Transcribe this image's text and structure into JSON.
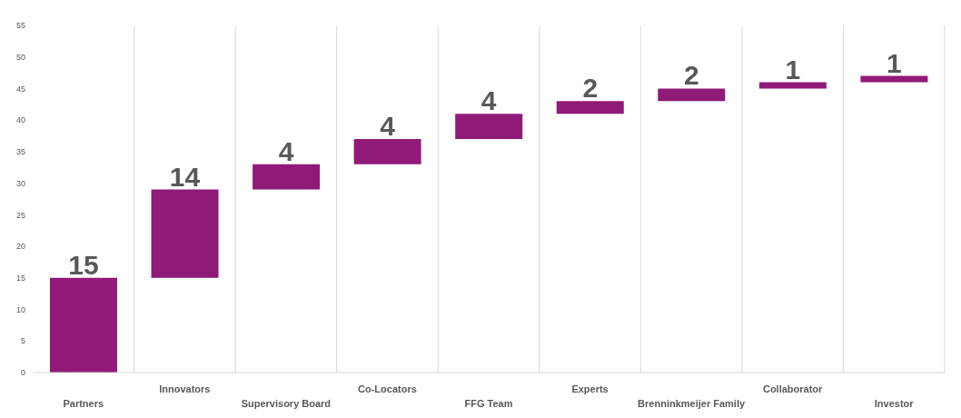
{
  "chart_data": {
    "type": "bar",
    "categories": [
      "Partners",
      "Innovators",
      "Supervisory Board",
      "Co-Locators",
      "FFG Team",
      "Experts",
      "Brenninkmeijer Family",
      "Collaborator",
      "Investor"
    ],
    "values": [
      15,
      14,
      4,
      4,
      4,
      2,
      2,
      1,
      1
    ],
    "base": [
      0,
      15,
      29,
      33,
      37,
      41,
      43,
      45,
      46
    ],
    "color": "#901a78",
    "ylim": [
      0,
      55
    ],
    "yticks": [
      0,
      5,
      10,
      15,
      20,
      25,
      30,
      35,
      40,
      45,
      50,
      55
    ],
    "grid": "x",
    "data_labels": true
  }
}
